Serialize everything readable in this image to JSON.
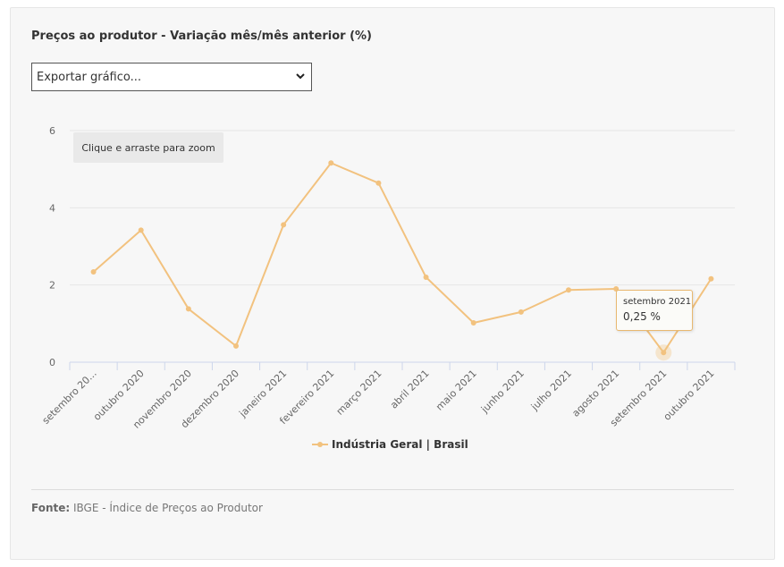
{
  "title": "Preços ao produtor - Variação mês/mês anterior (%)",
  "export_select": {
    "selected": "Exportar gráfico..."
  },
  "zoom_hint": "Clique e arraste para zoom",
  "tooltip": {
    "label": "setembro 2021",
    "value": "0,25 %"
  },
  "legend": {
    "label": "Indústria Geral | Brasil"
  },
  "source": {
    "label": "Fonte:",
    "text": " IBGE - Índice de Preços ao Produtor"
  },
  "colors": {
    "series": "#f2c27f",
    "grid": "#e6e6e6",
    "axis": "#ccd6eb"
  },
  "chart_data": {
    "type": "line",
    "categories": [
      "setembro 20...",
      "outubro 2020",
      "novembro 2020",
      "dezembro 2020",
      "janeiro 2021",
      "fevereiro 2021",
      "março 2021",
      "abril 2021",
      "maio 2021",
      "junho 2021",
      "julho 2021",
      "agosto 2021",
      "setembro 2021",
      "outubro 2021"
    ],
    "series": [
      {
        "name": "Indústria Geral | Brasil",
        "values": [
          2.34,
          3.42,
          1.38,
          0.42,
          3.56,
          5.16,
          4.64,
          2.2,
          1.02,
          1.3,
          1.87,
          1.9,
          0.25,
          2.16
        ]
      }
    ],
    "ylim": [
      0,
      6
    ],
    "yticks": [
      0,
      2,
      4,
      6
    ],
    "grid": true,
    "legend_position": "bottom-center",
    "highlight_index": 12
  }
}
